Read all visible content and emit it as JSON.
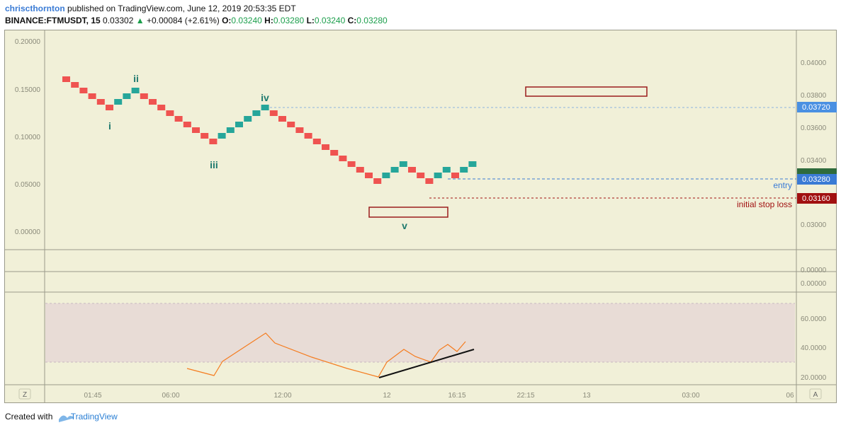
{
  "header": {
    "author": "chriscthornton",
    "published_text": "published on TradingView.com, June 12, 2019 20:53:35 EDT",
    "symbol": "BINANCE:FTMUSDT, 15",
    "last": "0.03302",
    "change": "+0.00084 (+2.61%)",
    "o_label": "O:",
    "o_value": "0.03240",
    "h_label": "H:",
    "h_value": "0.03280",
    "l_label": "L:",
    "l_value": "0.03240",
    "c_label": "C:",
    "c_value": "0.03280"
  },
  "left_axis": {
    "ticks": [
      "0.20000",
      "0.15000",
      "0.10000",
      "0.05000",
      "0.00000"
    ]
  },
  "right_axis": {
    "ticks": [
      "0.04000",
      "0.03800",
      "0.03600",
      "0.03400",
      "0.03000",
      "0.00000",
      "0.00000"
    ],
    "price_badges": {
      "target": "0.03720",
      "current_hidden": "0.03302",
      "entry": "0.03280",
      "stop": "0.03160"
    }
  },
  "annotations": {
    "wave_i": "i",
    "wave_ii": "ii",
    "wave_iii": "iii",
    "wave_iv": "iv",
    "wave_v": "v",
    "entry_label": "entry",
    "stop_label": "initial stop loss"
  },
  "oscillator_axis": {
    "ticks": [
      "60.0000",
      "40.0000",
      "20.0000"
    ]
  },
  "time_axis": {
    "labels": [
      "01:45",
      "06:00",
      "12:00",
      "12",
      "16:15",
      "22:15",
      "13",
      "03:00",
      "06"
    ]
  },
  "corner_buttons": {
    "left": "Z",
    "right": "A"
  },
  "footer": {
    "created_with": "Created with",
    "brand": "TradingView"
  },
  "colors": {
    "up_brick": "#26a69a",
    "down_brick": "#ef5350",
    "background": "#f1f0d8",
    "rsi_band": "#e8dcd6",
    "rsi_line": "#f57c1f",
    "target_badge": "#4a90e2",
    "entry_badge": "#3a7bd5",
    "stop_badge": "#a11010",
    "box_outline": "#9b1c1c"
  },
  "chart_data": {
    "type": "renko",
    "brick_sequence": [
      "d",
      "d",
      "d",
      "d",
      "d",
      "d",
      "u",
      "u",
      "u",
      "d",
      "d",
      "d",
      "d",
      "d",
      "d",
      "d",
      "d",
      "d",
      "u",
      "u",
      "u",
      "u",
      "u",
      "u",
      "d",
      "d",
      "d",
      "d",
      "d",
      "d",
      "d",
      "d",
      "d",
      "d",
      "d",
      "d",
      "d",
      "u",
      "u",
      "u",
      "d",
      "d",
      "d",
      "u",
      "u",
      "d",
      "u",
      "u"
    ],
    "rsi": {
      "band": [
        30,
        70
      ],
      "ylim": [
        15,
        75
      ]
    }
  }
}
